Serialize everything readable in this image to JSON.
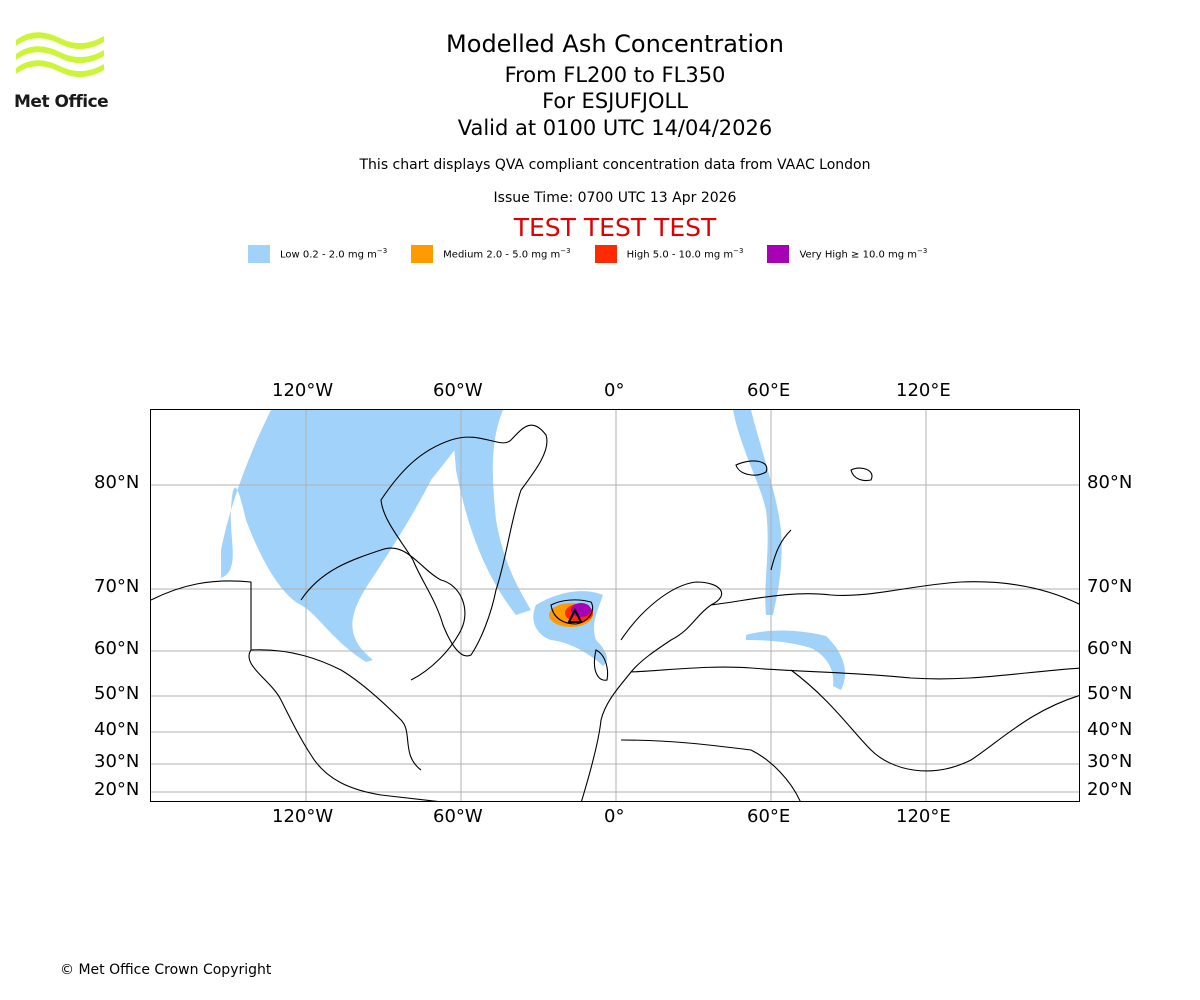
{
  "header": {
    "title": "Modelled Ash Concentration",
    "levels": "From FL200 to FL350",
    "volcano": "For ESJUFJOLL",
    "valid": "Valid at 0100 UTC 14/04/2026",
    "note": "This chart displays QVA compliant concentration data from VAAC London",
    "issue": "Issue Time: 0700 UTC 13 Apr 2026",
    "test_banner": "TEST TEST TEST"
  },
  "logo": {
    "text": "Met Office",
    "color": "#ccf53a"
  },
  "legend": [
    {
      "label": "Low 0.2 - 2.0 mg m",
      "unit_exp": "−3",
      "color": "#a1d2f9"
    },
    {
      "label": "Medium 2.0 - 5.0 mg m",
      "unit_exp": "−3",
      "color": "#ff9a00"
    },
    {
      "label": "High 5.0 - 10.0 mg m",
      "unit_exp": "−3",
      "color": "#ff2a00"
    },
    {
      "label": "Very High ≥ 10.0 mg m",
      "unit_exp": "−3",
      "color": "#a800b4"
    }
  ],
  "map": {
    "lon_ticks": [
      "120°W",
      "60°W",
      "0°",
      "60°E",
      "120°E"
    ],
    "lat_ticks": [
      "80°N",
      "70°N",
      "60°N",
      "50°N",
      "40°N",
      "30°N",
      "20°N"
    ]
  },
  "footer": {
    "copyright": "© Met Office Crown Copyright"
  }
}
